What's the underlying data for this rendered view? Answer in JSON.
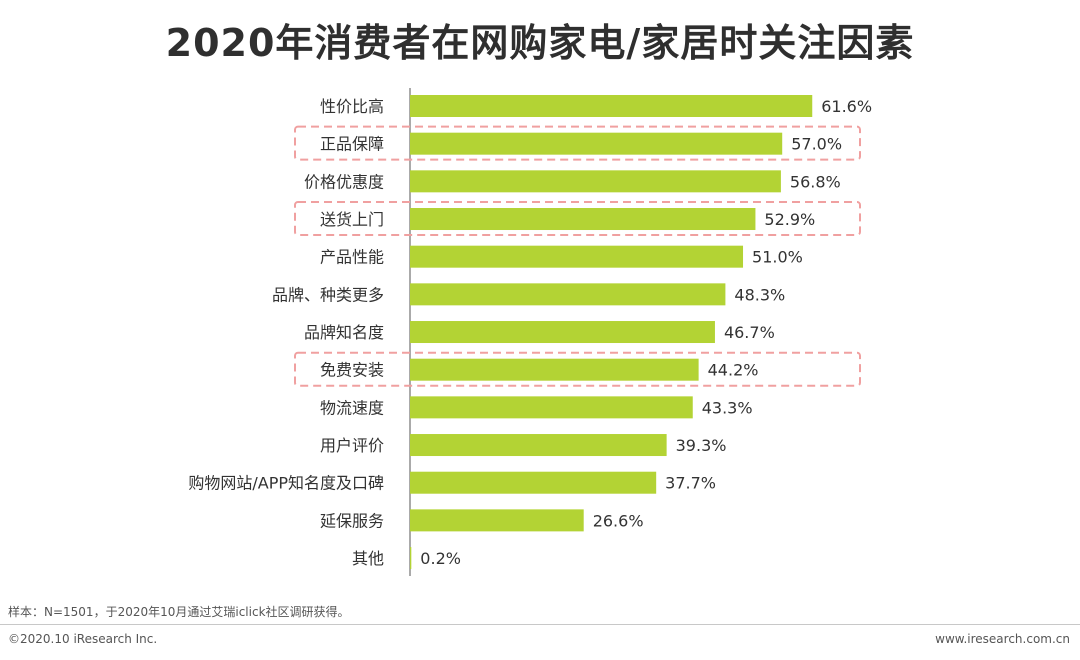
{
  "header": {
    "title": "2020年消费者在网购家电/家居时关注因素"
  },
  "chart_data": {
    "type": "bar",
    "orientation": "horizontal",
    "title": "2020年消费者在网购家电/家居时关注因素",
    "categories": [
      "性价比高",
      "正品保障",
      "价格优惠度",
      "送货上门",
      "产品性能",
      "品牌、种类更多",
      "品牌知名度",
      "免费安装",
      "物流速度",
      "用户评价",
      "购物网站/APP知名度及口碑",
      "延保服务",
      "其他"
    ],
    "values": [
      61.6,
      57.0,
      56.8,
      52.9,
      51.0,
      48.3,
      46.7,
      44.2,
      43.3,
      39.3,
      37.7,
      26.6,
      0.2
    ],
    "value_labels": [
      "61.6%",
      "57.0%",
      "56.8%",
      "52.9%",
      "51.0%",
      "48.3%",
      "46.7%",
      "44.2%",
      "43.3%",
      "39.3%",
      "37.7%",
      "26.6%",
      "0.2%"
    ],
    "highlighted": [
      "正品保障",
      "送货上门",
      "免费安装"
    ],
    "xlim": [
      0,
      70
    ],
    "xlabel": "",
    "ylabel": "",
    "bar_color": "#b3d334",
    "highlight_color": "#f0a0a0"
  },
  "footer": {
    "note": "样本：N=1501，于2020年10月通过艾瑞iclick社区调研获得。",
    "copyright": "©2020.10 iResearch Inc.",
    "website": "www.iresearch.com.cn"
  }
}
